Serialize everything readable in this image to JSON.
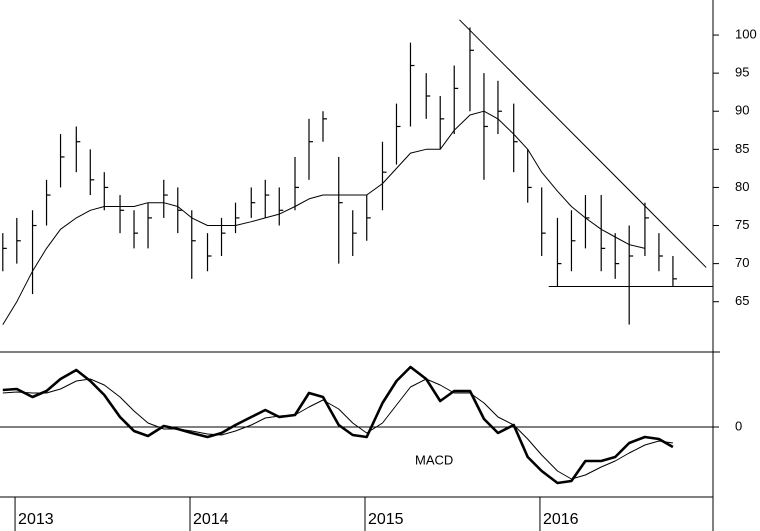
{
  "chart_data": [
    {
      "type": "ohlc",
      "x": [
        2012.93,
        2013.01,
        2013.1,
        2013.18,
        2013.26,
        2013.35,
        2013.43,
        2013.51,
        2013.6,
        2013.68,
        2013.76,
        2013.85,
        2013.93,
        2014.01,
        2014.1,
        2014.18,
        2014.26,
        2014.35,
        2014.43,
        2014.51,
        2014.6,
        2014.68,
        2014.76,
        2014.85,
        2014.93,
        2015.01,
        2015.1,
        2015.18,
        2015.26,
        2015.35,
        2015.43,
        2015.51,
        2015.6,
        2015.68,
        2015.76,
        2015.85,
        2015.93,
        2016.01,
        2016.1,
        2016.18,
        2016.26,
        2016.35,
        2016.43,
        2016.51,
        2016.6,
        2016.68,
        2016.76
      ],
      "high": [
        74,
        76,
        77,
        81,
        87,
        88,
        85,
        82,
        79,
        77,
        78,
        81,
        80,
        77,
        74,
        76,
        78,
        80,
        81,
        80,
        84,
        89,
        90,
        84,
        77,
        79,
        86,
        91,
        99,
        95,
        92,
        96,
        101,
        95,
        94,
        91,
        85,
        80,
        76,
        77,
        79,
        79,
        74,
        75,
        78,
        74,
        71
      ],
      "low": [
        69,
        70,
        66,
        75,
        80,
        82,
        79,
        77,
        74,
        72,
        72,
        76,
        74,
        68,
        69,
        71,
        74,
        76,
        76,
        75,
        77,
        81,
        86,
        70,
        71,
        73,
        77,
        83,
        88,
        89,
        85,
        87,
        90,
        81,
        87,
        82,
        78,
        71,
        67,
        69,
        72,
        69,
        68,
        62,
        71,
        69,
        67
      ],
      "close": [
        72,
        73,
        75,
        79,
        84,
        86,
        81,
        80,
        77,
        74,
        76,
        79,
        77,
        73,
        71,
        74,
        76,
        78,
        79,
        77,
        80,
        86,
        89,
        78,
        74,
        76,
        82,
        88,
        96,
        92,
        89,
        93,
        98,
        88,
        90,
        86,
        80,
        74,
        70,
        73,
        76,
        72,
        70,
        71,
        76,
        71,
        68
      ],
      "moving_average": [
        62,
        65,
        69,
        72,
        74.5,
        76,
        77,
        77.5,
        77.5,
        77.5,
        78,
        78,
        77.5,
        76,
        75,
        75,
        75,
        75.5,
        76,
        76.5,
        77.5,
        78.5,
        79,
        79,
        79,
        79,
        80.5,
        82.5,
        84.5,
        85,
        85,
        87.5,
        89.5,
        90,
        89,
        87,
        85,
        82,
        79.5,
        77.5,
        76,
        74.5,
        73.5,
        72.5,
        72,
        null,
        null
      ],
      "trendlines": [
        {
          "x": [
            2015.54,
            2016.95
          ],
          "y": [
            102,
            69.5
          ]
        },
        {
          "x": [
            2016.05,
            2016.989
          ],
          "y": [
            67,
            67
          ]
        }
      ],
      "xlim": [
        2012.914,
        2016.989
      ],
      "ylim": [
        58.4,
        104.6
      ],
      "yticks": [
        65,
        70,
        75,
        80,
        85,
        90,
        95,
        100
      ],
      "color": "#000000"
    },
    {
      "type": "line",
      "annotation": "MACD",
      "x": [
        2012.93,
        2013.01,
        2013.1,
        2013.18,
        2013.26,
        2013.35,
        2013.43,
        2013.51,
        2013.6,
        2013.68,
        2013.76,
        2013.85,
        2013.93,
        2014.01,
        2014.1,
        2014.18,
        2014.26,
        2014.35,
        2014.43,
        2014.51,
        2014.6,
        2014.68,
        2014.76,
        2014.85,
        2014.93,
        2015.01,
        2015.1,
        2015.18,
        2015.26,
        2015.35,
        2015.43,
        2015.51,
        2015.6,
        2015.68,
        2015.76,
        2015.85,
        2015.93,
        2016.01,
        2016.1,
        2016.18,
        2016.26,
        2016.35,
        2016.43,
        2016.51,
        2016.6,
        2016.68,
        2016.76
      ],
      "macd": [
        1.85,
        1.9,
        1.5,
        1.8,
        2.4,
        2.85,
        2.3,
        1.6,
        0.5,
        -0.2,
        -0.45,
        0.05,
        -0.1,
        -0.3,
        -0.5,
        -0.3,
        0.1,
        0.5,
        0.85,
        0.5,
        0.6,
        1.7,
        1.5,
        0.1,
        -0.4,
        -0.5,
        1.2,
        2.3,
        3.0,
        2.4,
        1.3,
        1.8,
        1.8,
        0.4,
        -0.3,
        0.1,
        -1.5,
        -2.2,
        -2.8,
        -2.7,
        -1.7,
        -1.7,
        -1.5,
        -0.8,
        -0.5,
        -0.6,
        -1.0
      ],
      "signal": [
        1.7,
        1.75,
        1.7,
        1.7,
        1.9,
        2.3,
        2.4,
        2.1,
        1.5,
        0.8,
        0.2,
        -0.1,
        -0.1,
        -0.2,
        -0.35,
        -0.4,
        -0.2,
        0.1,
        0.45,
        0.55,
        0.6,
        1.0,
        1.35,
        0.9,
        0.2,
        -0.3,
        0.2,
        1.1,
        2.0,
        2.4,
        2.1,
        1.7,
        1.7,
        1.2,
        0.5,
        0.1,
        -0.6,
        -1.4,
        -2.2,
        -2.6,
        -2.4,
        -2.0,
        -1.7,
        -1.3,
        -0.9,
        -0.7,
        -0.8
      ],
      "xlim": [
        2012.914,
        2016.989
      ],
      "ylim": [
        -3.5,
        3.75
      ],
      "yticks": [
        0
      ],
      "xticks": [
        2013,
        2014,
        2015,
        2016
      ],
      "color": "#000000"
    }
  ]
}
